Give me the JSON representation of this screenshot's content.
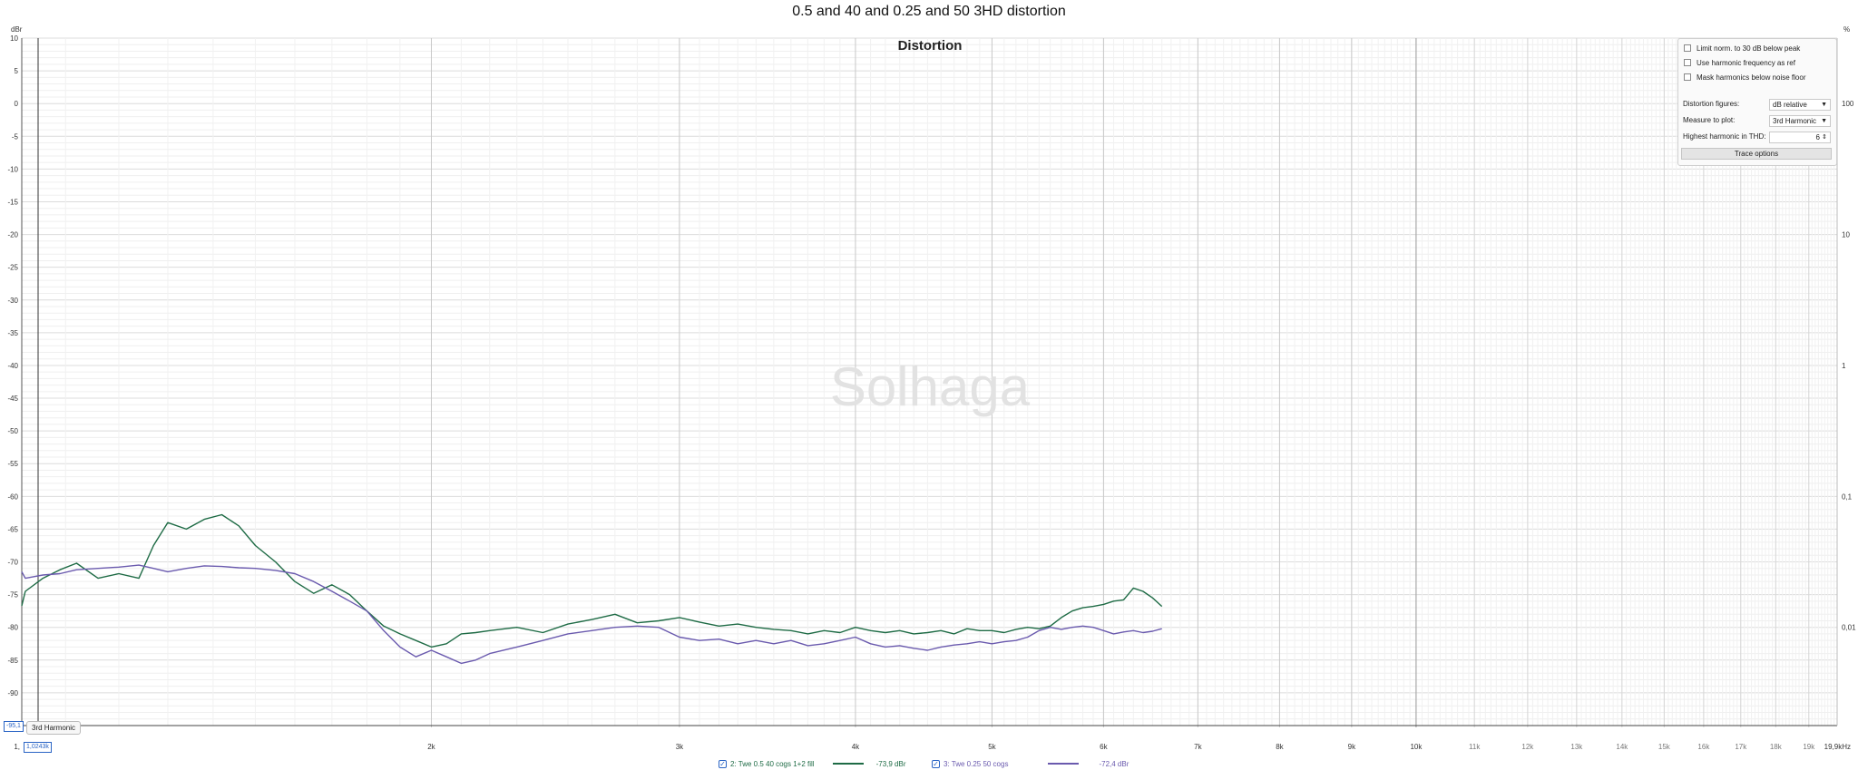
{
  "window_title": "0.5 and 40 and 0.25 and 50 3HD distortion",
  "chart_data": {
    "type": "line",
    "title": "Distortion",
    "watermark": "Solhaga",
    "xlabel": "",
    "ylabel": "dBr",
    "y2label": "%",
    "x_unit": "kHz",
    "x_scale": "log",
    "xlim": [
      1024,
      19900
    ],
    "ylim": [
      -95,
      10
    ],
    "grid": true,
    "x_major_ticks": [
      {
        "v": 2000,
        "label": "2k"
      },
      {
        "v": 3000,
        "label": "3k"
      },
      {
        "v": 4000,
        "label": "4k"
      },
      {
        "v": 5000,
        "label": "5k"
      },
      {
        "v": 6000,
        "label": "6k"
      },
      {
        "v": 7000,
        "label": "7k"
      },
      {
        "v": 8000,
        "label": "8k"
      },
      {
        "v": 9000,
        "label": "9k"
      },
      {
        "v": 10000,
        "label": "10k"
      }
    ],
    "x_minor_ticks": [
      {
        "v": 11000,
        "label": "11k"
      },
      {
        "v": 12000,
        "label": "12k"
      },
      {
        "v": 13000,
        "label": "13k"
      },
      {
        "v": 14000,
        "label": "14k"
      },
      {
        "v": 15000,
        "label": "15k"
      },
      {
        "v": 16000,
        "label": "16k"
      },
      {
        "v": 17000,
        "label": "17k"
      },
      {
        "v": 18000,
        "label": "18k"
      },
      {
        "v": 19000,
        "label": "19k"
      }
    ],
    "x_left_label": "1,",
    "x_right_label": "19,9kHz",
    "y_ticks": [
      10,
      5,
      0,
      -5,
      -10,
      -15,
      -20,
      -25,
      -30,
      -35,
      -40,
      -45,
      -50,
      -55,
      -60,
      -65,
      -70,
      -75,
      -80,
      -85,
      -90
    ],
    "y2_ticks": [
      {
        "db": 0,
        "label": "100"
      },
      {
        "db": -20,
        "label": "10"
      },
      {
        "db": -40,
        "label": "1"
      },
      {
        "db": -60,
        "label": "0,1"
      },
      {
        "db": -80,
        "label": "0,01"
      }
    ],
    "series": [
      {
        "name": "2: Twe 0.5 40 cogs 1+2 fill",
        "readout": "-73,9 dBr",
        "color": "#1e6b45",
        "x": [
          1000,
          1030,
          1060,
          1090,
          1120,
          1160,
          1200,
          1240,
          1270,
          1300,
          1340,
          1380,
          1420,
          1460,
          1500,
          1550,
          1600,
          1650,
          1700,
          1750,
          1800,
          1850,
          1900,
          1950,
          2000,
          2050,
          2100,
          2150,
          2200,
          2300,
          2400,
          2500,
          2600,
          2700,
          2800,
          2900,
          3000,
          3100,
          3200,
          3300,
          3400,
          3500,
          3600,
          3700,
          3800,
          3900,
          4000,
          4100,
          4200,
          4300,
          4400,
          4500,
          4600,
          4700,
          4800,
          4900,
          5000,
          5100,
          5200,
          5300,
          5400,
          5500,
          5600,
          5700,
          5800,
          5900,
          6000,
          6100,
          6200,
          6300,
          6400,
          6500,
          6600
        ],
        "y": [
          -76.7,
          -74.5,
          -72.5,
          -71.2,
          -70.2,
          -72.5,
          -71.8,
          -72.5,
          -67.5,
          -64.0,
          -65.0,
          -63.5,
          -62.8,
          -64.5,
          -67.5,
          -70.0,
          -73.0,
          -74.8,
          -73.5,
          -75.0,
          -77.5,
          -79.8,
          -81.0,
          -82.0,
          -83.0,
          -82.5,
          -81.0,
          -80.8,
          -80.5,
          -80.0,
          -80.8,
          -79.5,
          -78.8,
          -78.0,
          -79.3,
          -79.0,
          -78.5,
          -79.2,
          -79.8,
          -79.5,
          -80.0,
          -80.3,
          -80.5,
          -81.0,
          -80.5,
          -80.8,
          -80.0,
          -80.5,
          -80.8,
          -80.5,
          -81.0,
          -80.8,
          -80.5,
          -81.0,
          -80.2,
          -80.5,
          -80.5,
          -80.8,
          -80.3,
          -80.0,
          -80.2,
          -79.8,
          -78.5,
          -77.5,
          -77.0,
          -76.8,
          -76.5,
          -76.0,
          -75.8,
          -74.0,
          -74.5,
          -75.5,
          -76.8
        ]
      },
      {
        "name": "3: Twe 0.25 50 cogs",
        "readout": "-72,4 dBr",
        "color": "#6a5aae",
        "x": [
          1000,
          1030,
          1060,
          1090,
          1120,
          1160,
          1200,
          1240,
          1270,
          1300,
          1340,
          1380,
          1420,
          1460,
          1500,
          1550,
          1600,
          1650,
          1700,
          1750,
          1800,
          1850,
          1900,
          1950,
          2000,
          2050,
          2100,
          2150,
          2200,
          2300,
          2400,
          2500,
          2600,
          2700,
          2800,
          2900,
          3000,
          3100,
          3200,
          3300,
          3400,
          3500,
          3600,
          3700,
          3800,
          3900,
          4000,
          4100,
          4200,
          4300,
          4400,
          4500,
          4600,
          4700,
          4800,
          4900,
          5000,
          5100,
          5200,
          5300,
          5400,
          5500,
          5600,
          5700,
          5800,
          5900,
          6000,
          6100,
          6200,
          6300,
          6400,
          6500,
          6600
        ],
        "y": [
          -71.5,
          -72.5,
          -72.0,
          -71.8,
          -71.2,
          -71.0,
          -70.8,
          -70.5,
          -71.0,
          -71.5,
          -71.0,
          -70.6,
          -70.7,
          -70.9,
          -71.0,
          -71.3,
          -71.8,
          -73.0,
          -74.5,
          -76.0,
          -77.5,
          -80.5,
          -83.0,
          -84.5,
          -83.5,
          -84.5,
          -85.5,
          -85.0,
          -84.0,
          -83.0,
          -82.0,
          -81.0,
          -80.5,
          -80.0,
          -79.8,
          -80.0,
          -81.5,
          -82.0,
          -81.8,
          -82.5,
          -82.0,
          -82.5,
          -82.0,
          -82.8,
          -82.5,
          -82.0,
          -81.5,
          -82.5,
          -83.0,
          -82.8,
          -83.2,
          -83.5,
          -83.0,
          -82.7,
          -82.5,
          -82.2,
          -82.5,
          -82.2,
          -82.0,
          -81.5,
          -80.5,
          -80.0,
          -80.3,
          -80.0,
          -79.8,
          -80.0,
          -80.5,
          -81.0,
          -80.7,
          -80.5,
          -80.8,
          -80.6,
          -80.2
        ]
      }
    ]
  },
  "controls": {
    "limit_norm_label": "Limit norm. to 30 dB below peak",
    "use_harmonic_freq_label": "Use harmonic frequency as ref",
    "mask_harmonics_label": "Mask harmonics below noise floor",
    "distortion_figures_label": "Distortion figures:",
    "distortion_figures_value": "dB relative",
    "measure_to_plot_label": "Measure to plot:",
    "measure_to_plot_value": "3rd Harmonic",
    "highest_harmonic_label": "Highest harmonic in THD:",
    "highest_harmonic_value": "6",
    "trace_options_label": "Trace options"
  },
  "cursor": {
    "y_readout": "-95,1",
    "x_readout": "1,0243k",
    "tooltip": "3rd Harmonic"
  }
}
